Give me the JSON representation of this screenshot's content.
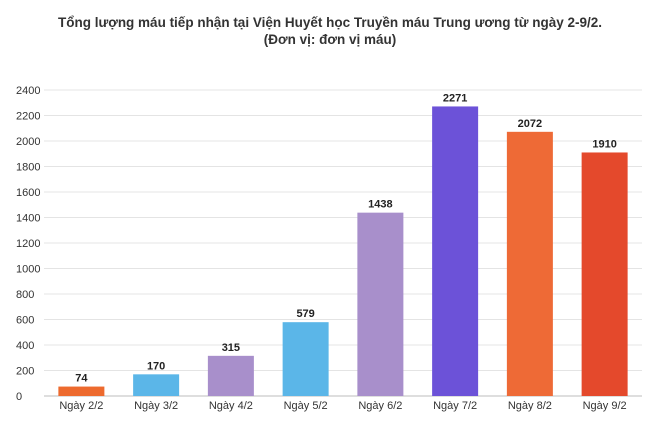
{
  "chart_data": {
    "type": "bar",
    "title": "Tổng lượng máu tiếp nhận tại Viện Huyết học Truyền máu Trung ương từ ngày 2-9/2.",
    "subtitle": "(Đơn vị: đơn vị máu)",
    "xlabel": "",
    "ylabel": "",
    "categories": [
      "Ngày 2/2",
      "Ngày 3/2",
      "Ngày 4/2",
      "Ngày 5/2",
      "Ngày 6/2",
      "Ngày 7/2",
      "Ngày 8/2",
      "Ngày 9/2"
    ],
    "values": [
      74,
      170,
      315,
      579,
      1438,
      2271,
      2072,
      1910
    ],
    "colors": [
      "#ED6A2E",
      "#5BB6E8",
      "#A88FCB",
      "#5BB6E8",
      "#A88FCB",
      "#6C52D8",
      "#EE6A36",
      "#E4492C"
    ],
    "ylim": [
      0,
      2400
    ],
    "yticks": [
      0,
      200,
      400,
      600,
      800,
      1000,
      1200,
      1400,
      1600,
      1800,
      2000,
      2200,
      2400
    ],
    "grid": true,
    "data_labels": true
  }
}
